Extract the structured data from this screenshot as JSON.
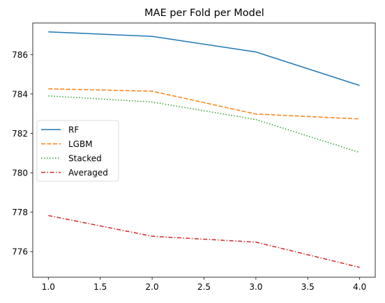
{
  "chart_data": {
    "type": "line",
    "title": "MAE per Fold per Model",
    "xlabel": "",
    "ylabel": "",
    "x": [
      1,
      2,
      3,
      4
    ],
    "xlim": [
      0.85,
      4.15
    ],
    "ylim": [
      774.7,
      787.6
    ],
    "xticks": [
      1.0,
      1.5,
      2.0,
      2.5,
      3.0,
      3.5,
      4.0
    ],
    "xtick_labels": [
      "1.0",
      "1.5",
      "2.0",
      "2.5",
      "3.0",
      "3.5",
      "4.0"
    ],
    "yticks": [
      776,
      778,
      780,
      782,
      784,
      786
    ],
    "ytick_labels": [
      "776",
      "778",
      "780",
      "782",
      "784",
      "786"
    ],
    "grid": false,
    "legend_position": "center-left",
    "series": [
      {
        "name": "RF",
        "values": [
          787.15,
          786.92,
          786.13,
          784.43
        ],
        "color": "#1f77b4",
        "dash": "solid"
      },
      {
        "name": "LGBM",
        "values": [
          784.26,
          784.14,
          782.98,
          782.73
        ],
        "color": "#ff7f0e",
        "dash": "dashed"
      },
      {
        "name": "Stacked",
        "values": [
          783.9,
          783.59,
          782.7,
          781.03
        ],
        "color": "#2ca02c",
        "dash": "dotted"
      },
      {
        "name": "Averaged",
        "values": [
          777.83,
          776.78,
          776.48,
          775.2
        ],
        "color": "#d62728",
        "dash": "dashdot"
      }
    ]
  }
}
